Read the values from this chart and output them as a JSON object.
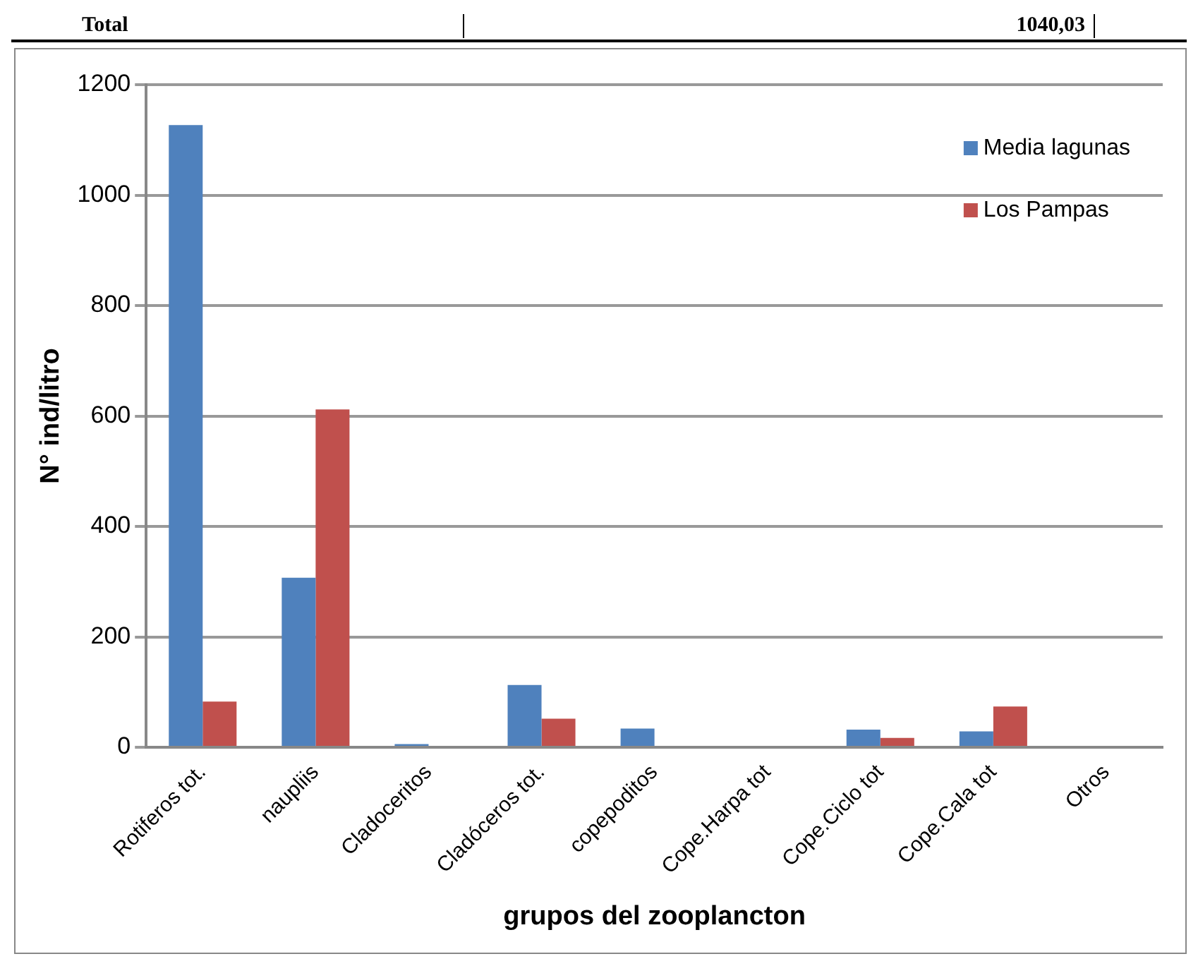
{
  "chart_data": {
    "type": "bar",
    "xlabel": "grupos del zooplancton",
    "ylabel": "N° ind/litro",
    "categories": [
      "Rotiferos tot.",
      "naupliis",
      "Cladoceritos",
      "Cladóceros tot.",
      "copepoditos",
      "Cope.Harpa tot",
      "Cope.Ciclo tot",
      "Cope.Cala tot",
      "Otros"
    ],
    "series": [
      {
        "name": "Media lagunas",
        "color": "#4f81bd",
        "values": [
          1127,
          307,
          6,
          113,
          34,
          0,
          32,
          29,
          0
        ]
      },
      {
        "name": "Los Pampas",
        "color": "#c0504d",
        "values": [
          83,
          612,
          0,
          52,
          0,
          0,
          17,
          74,
          0
        ]
      }
    ],
    "ylim": [
      0,
      1200
    ],
    "yticks": [
      0,
      200,
      400,
      600,
      800,
      1000,
      1200
    ],
    "grid": "y",
    "legend": "top right",
    "annotations": [
      "Total",
      "1040,03"
    ]
  }
}
